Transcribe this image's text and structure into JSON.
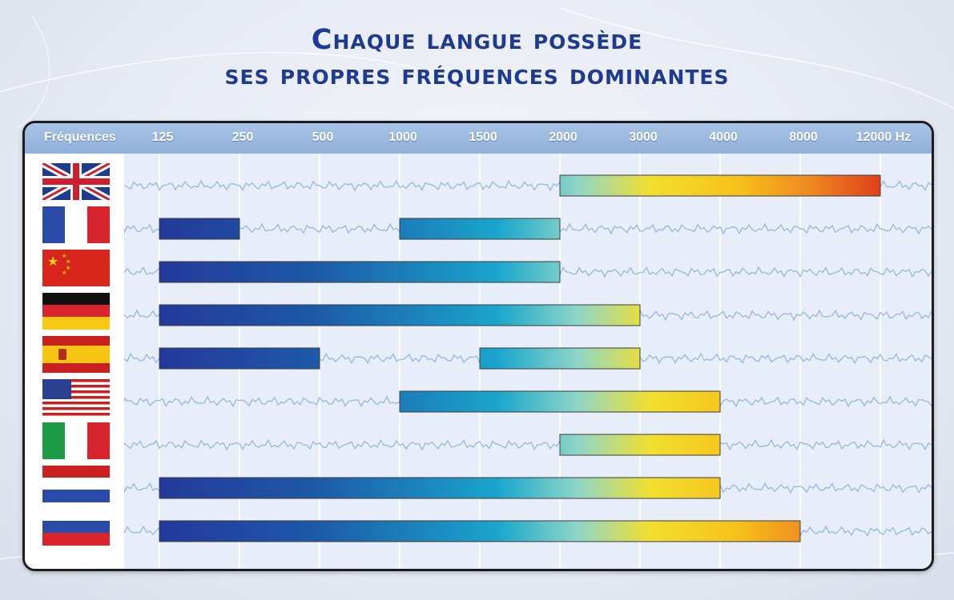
{
  "title": {
    "line1": "Chaque langue possède",
    "line2": "ses propres fréquences dominantes"
  },
  "chart_data": {
    "type": "bar",
    "orientation": "horizontal-range",
    "xlabel": "Fréquences",
    "x_unit": "Hz",
    "x_ticks": [
      "125",
      "250",
      "500",
      "1000",
      "1500",
      "2000",
      "3000",
      "4000",
      "8000",
      "12000 Hz"
    ],
    "x_tick_values": [
      125,
      250,
      500,
      1000,
      1500,
      2000,
      3000,
      4000,
      8000,
      12000
    ],
    "x_scale": "categorical-equal-spacing",
    "grid": true,
    "colors": {
      "low": "#24399a",
      "mid": "#1aa6cc",
      "high_mid": "#f1df30",
      "high": "#e0401b"
    },
    "rows": [
      {
        "flag": "united-kingdom-flag-icon",
        "ranges": [
          [
            2000,
            12000
          ]
        ]
      },
      {
        "flag": "france-flag-icon",
        "ranges": [
          [
            125,
            250
          ],
          [
            1000,
            2000
          ]
        ]
      },
      {
        "flag": "china-flag-icon",
        "ranges": [
          [
            125,
            2000
          ]
        ]
      },
      {
        "flag": "germany-flag-icon",
        "ranges": [
          [
            125,
            3000
          ]
        ]
      },
      {
        "flag": "spain-flag-icon",
        "ranges": [
          [
            125,
            500
          ],
          [
            1500,
            3000
          ]
        ]
      },
      {
        "flag": "usa-flag-icon",
        "ranges": [
          [
            1000,
            4000
          ]
        ]
      },
      {
        "flag": "italy-flag-icon",
        "ranges": [
          [
            2000,
            4000
          ]
        ]
      },
      {
        "flag": "netherlands-flag-icon",
        "ranges": [
          [
            125,
            4000
          ]
        ]
      },
      {
        "flag": "russia-flag-icon",
        "ranges": [
          [
            125,
            8000
          ]
        ]
      }
    ]
  }
}
